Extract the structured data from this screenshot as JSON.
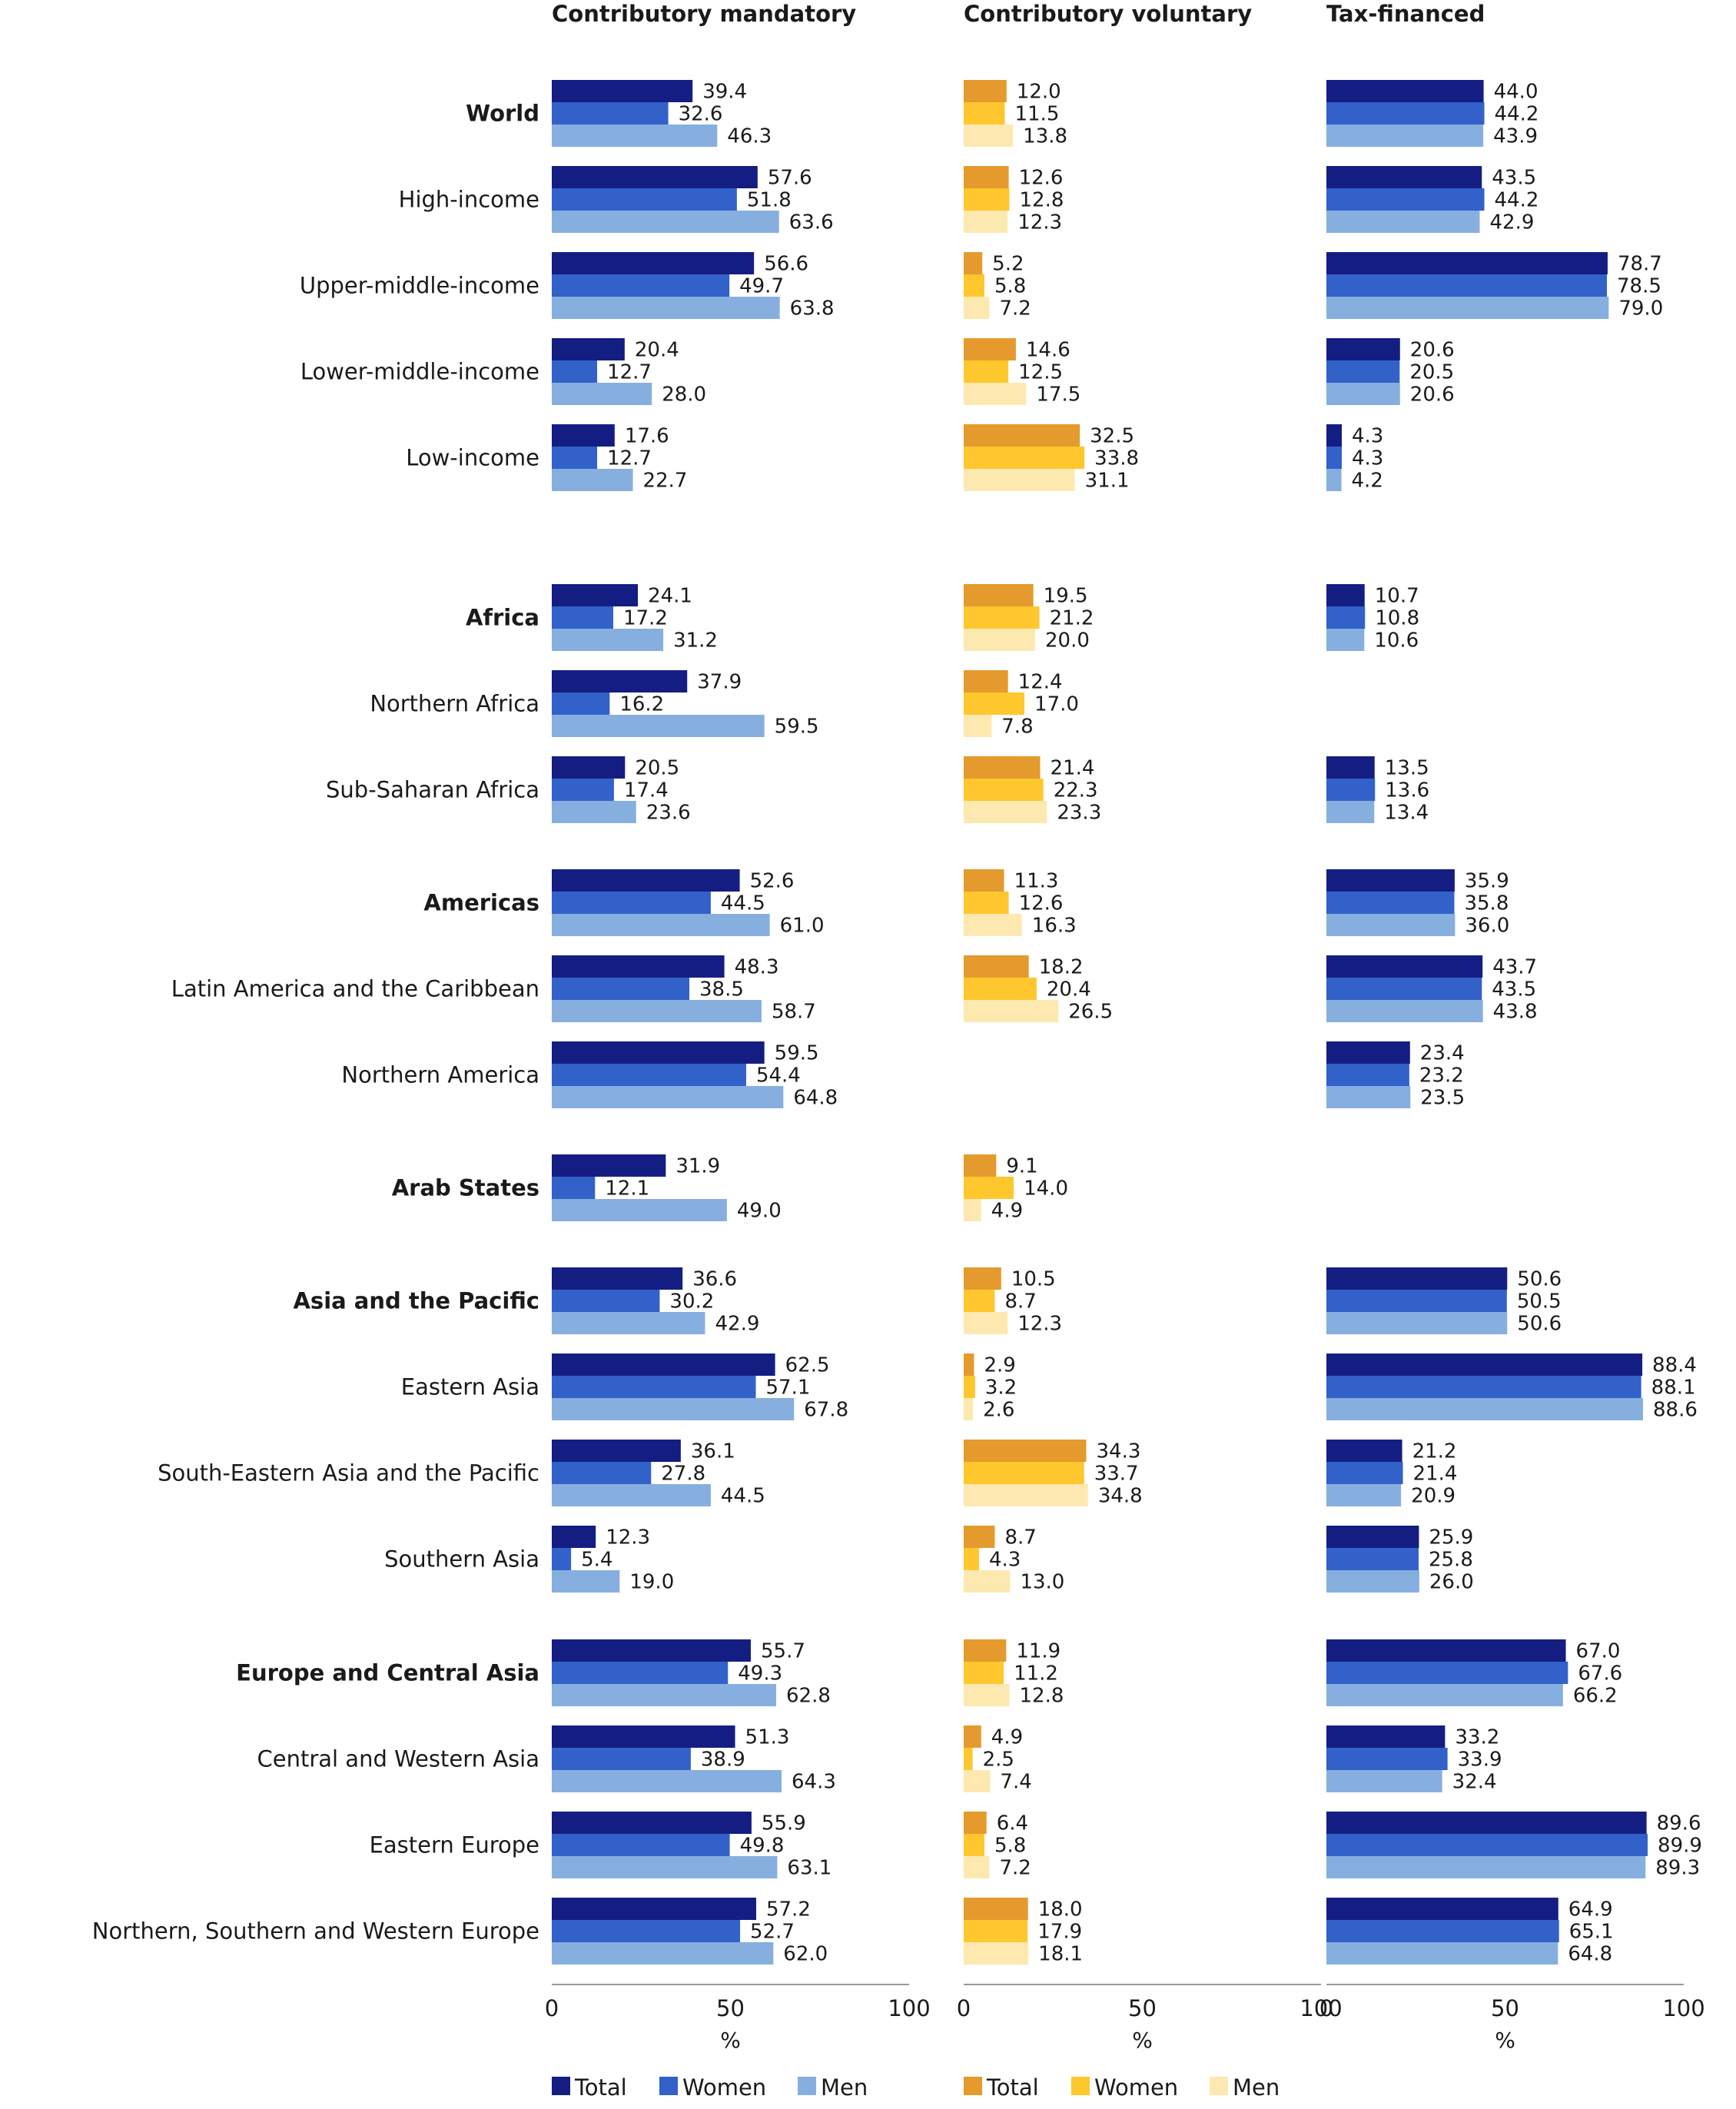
{
  "chart_data": {
    "type": "bar",
    "orientation": "horizontal",
    "x_unit": "%",
    "xlim": [
      0,
      100
    ],
    "x_ticks": [
      "0",
      "50",
      "100"
    ],
    "panels": [
      {
        "id": "mandatory",
        "title": "Contributory mandatory",
        "palette": "blue"
      },
      {
        "id": "voluntary",
        "title": "Contributory voluntary",
        "palette": "orange"
      },
      {
        "id": "tax",
        "title": "Tax-financed",
        "palette": "blue"
      }
    ],
    "series_names": [
      "Total",
      "Women",
      "Men"
    ],
    "colors": {
      "blue": [
        "#141e82",
        "#3161c9",
        "#86afdf"
      ],
      "orange": [
        "#e49a2c",
        "#fec72e",
        "#fde9b0"
      ]
    },
    "legends": [
      {
        "panel": "mandatory",
        "items": [
          "Total",
          "Women",
          "Men"
        ]
      },
      {
        "panel": "voluntary",
        "items": [
          "Total",
          "Women",
          "Men"
        ]
      }
    ],
    "categories": [
      {
        "label": "World",
        "bold": true,
        "mandatory": [
          39.4,
          32.6,
          46.3
        ],
        "voluntary": [
          12.0,
          11.5,
          13.8
        ],
        "tax": [
          44.0,
          44.2,
          43.9
        ]
      },
      {
        "label": "High-income",
        "bold": false,
        "mandatory": [
          57.6,
          51.8,
          63.6
        ],
        "voluntary": [
          12.6,
          12.8,
          12.3
        ],
        "tax": [
          43.5,
          44.2,
          42.9
        ]
      },
      {
        "label": "Upper-middle-income",
        "bold": false,
        "mandatory": [
          56.6,
          49.7,
          63.8
        ],
        "voluntary": [
          5.2,
          5.8,
          7.2
        ],
        "tax": [
          78.7,
          78.5,
          79.0
        ]
      },
      {
        "label": "Lower-middle-income",
        "bold": false,
        "mandatory": [
          20.4,
          12.7,
          28.0
        ],
        "voluntary": [
          14.6,
          12.5,
          17.5
        ],
        "tax": [
          20.6,
          20.5,
          20.6
        ]
      },
      {
        "label": "Low-income",
        "bold": false,
        "mandatory": [
          17.6,
          12.7,
          22.7
        ],
        "voluntary": [
          32.5,
          33.8,
          31.1
        ],
        "tax": [
          4.3,
          4.3,
          4.2
        ]
      },
      {
        "label": "Africa",
        "bold": true,
        "mandatory": [
          24.1,
          17.2,
          31.2
        ],
        "voluntary": [
          19.5,
          21.2,
          20.0
        ],
        "tax": [
          10.7,
          10.8,
          10.6
        ]
      },
      {
        "label": "Northern Africa",
        "bold": false,
        "mandatory": [
          37.9,
          16.2,
          59.5
        ],
        "voluntary": [
          12.4,
          17.0,
          7.8
        ],
        "tax": null
      },
      {
        "label": "Sub-Saharan Africa",
        "bold": false,
        "mandatory": [
          20.5,
          17.4,
          23.6
        ],
        "voluntary": [
          21.4,
          22.3,
          23.3
        ],
        "tax": [
          13.5,
          13.6,
          13.4
        ]
      },
      {
        "label": "Americas",
        "bold": true,
        "mandatory": [
          52.6,
          44.5,
          61.0
        ],
        "voluntary": [
          11.3,
          12.6,
          16.3
        ],
        "tax": [
          35.9,
          35.8,
          36.0
        ]
      },
      {
        "label": "Latin America and the Caribbean",
        "bold": false,
        "mandatory": [
          48.3,
          38.5,
          58.7
        ],
        "voluntary": [
          18.2,
          20.4,
          26.5
        ],
        "tax": [
          43.7,
          43.5,
          43.8
        ]
      },
      {
        "label": "Northern America",
        "bold": false,
        "mandatory": [
          59.5,
          54.4,
          64.8
        ],
        "voluntary": null,
        "tax": [
          23.4,
          23.2,
          23.5
        ]
      },
      {
        "label": "Arab States",
        "bold": true,
        "mandatory": [
          31.9,
          12.1,
          49.0
        ],
        "voluntary": [
          9.1,
          14.0,
          4.9
        ],
        "tax": null
      },
      {
        "label": "Asia and the Pacific",
        "bold": true,
        "mandatory": [
          36.6,
          30.2,
          42.9
        ],
        "voluntary": [
          10.5,
          8.7,
          12.3
        ],
        "tax": [
          50.6,
          50.5,
          50.6
        ]
      },
      {
        "label": "Eastern Asia",
        "bold": false,
        "mandatory": [
          62.5,
          57.1,
          67.8
        ],
        "voluntary": [
          2.9,
          3.2,
          2.6
        ],
        "tax": [
          88.4,
          88.1,
          88.6
        ]
      },
      {
        "label": "South-Eastern Asia and the Pacific",
        "bold": false,
        "mandatory": [
          36.1,
          27.8,
          44.5
        ],
        "voluntary": [
          34.3,
          33.7,
          34.8
        ],
        "tax": [
          21.2,
          21.4,
          20.9
        ]
      },
      {
        "label": "Southern Asia",
        "bold": false,
        "mandatory": [
          12.3,
          5.4,
          19.0
        ],
        "voluntary": [
          8.7,
          4.3,
          13.0
        ],
        "tax": [
          25.9,
          25.8,
          26.0
        ]
      },
      {
        "label": "Europe and Central Asia",
        "bold": true,
        "mandatory": [
          55.7,
          49.3,
          62.8
        ],
        "voluntary": [
          11.9,
          11.2,
          12.8
        ],
        "tax": [
          67.0,
          67.6,
          66.2
        ]
      },
      {
        "label": "Central and Western Asia",
        "bold": false,
        "mandatory": [
          51.3,
          38.9,
          64.3
        ],
        "voluntary": [
          4.9,
          2.5,
          7.4
        ],
        "tax": [
          33.2,
          33.9,
          32.4
        ]
      },
      {
        "label": "Eastern Europe",
        "bold": false,
        "mandatory": [
          55.9,
          49.8,
          63.1
        ],
        "voluntary": [
          6.4,
          5.8,
          7.2
        ],
        "tax": [
          89.6,
          89.9,
          89.3
        ]
      },
      {
        "label": "Northern, Southern and Western Europe",
        "bold": false,
        "mandatory": [
          57.2,
          52.7,
          62.0
        ],
        "voluntary": [
          18.0,
          17.9,
          18.1
        ],
        "tax": [
          64.9,
          65.1,
          64.8
        ]
      }
    ]
  }
}
